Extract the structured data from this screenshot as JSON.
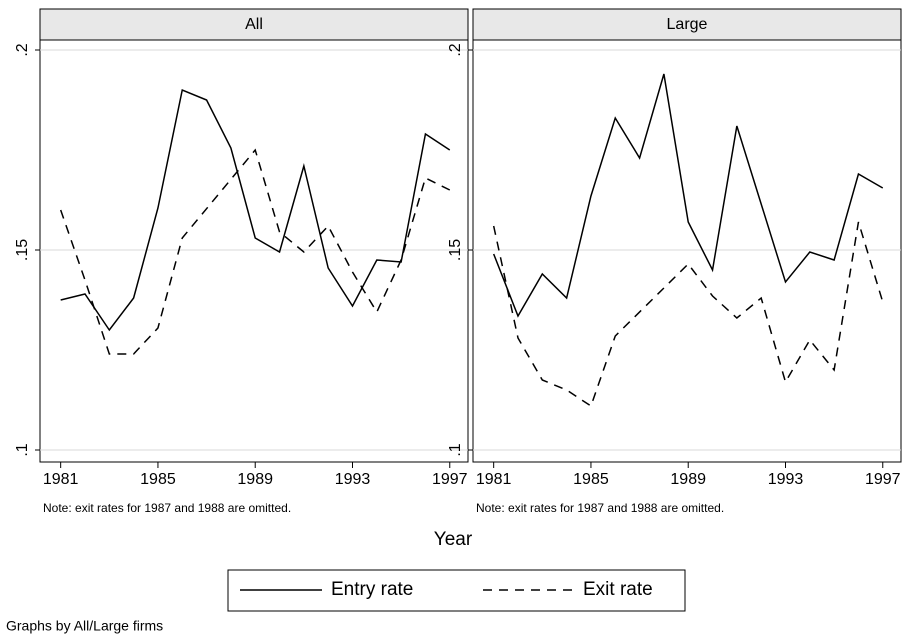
{
  "chart_data": [
    {
      "type": "line",
      "title": "All",
      "note": "Note: exit rates for 1987 and 1988 are omitted.",
      "xlim": [
        1980.15,
        1997.75
      ],
      "xticks": [
        1981,
        1985,
        1989,
        1993,
        1997
      ],
      "ylim": [
        0.097,
        0.2025
      ],
      "yticks": [
        {
          "value": 0.1,
          "label": ".1"
        },
        {
          "value": 0.15,
          "label": ".15"
        },
        {
          "value": 0.2,
          "label": ".2"
        }
      ],
      "grid": true,
      "series": [
        {
          "name": "Entry rate",
          "color": "#000000",
          "dash": false,
          "x": [
            1981,
            1982,
            1983,
            1984,
            1985,
            1986,
            1987,
            1988,
            1989,
            1990,
            1991,
            1992,
            1993,
            1994,
            1995,
            1996,
            1997
          ],
          "values": [
            0.1375,
            0.139,
            0.13,
            0.138,
            0.1605,
            0.19,
            0.1875,
            0.1755,
            0.153,
            0.1495,
            0.171,
            0.1455,
            0.136,
            0.1475,
            0.147,
            0.179,
            0.175
          ]
        },
        {
          "name": "Exit rate",
          "color": "#000000",
          "dash": true,
          "x": [
            1981,
            1982,
            1983,
            1984,
            1985,
            1986,
            1989,
            1990,
            1991,
            1992,
            1993,
            1994,
            1995,
            1996,
            1997
          ],
          "values": [
            0.16,
            0.1425,
            0.124,
            0.124,
            0.1305,
            0.153,
            0.175,
            0.1545,
            0.1495,
            0.156,
            0.1445,
            0.1345,
            0.1475,
            0.168,
            0.165
          ]
        }
      ]
    },
    {
      "type": "line",
      "title": "Large",
      "note": "Note: exit rates for 1987 and 1988 are omitted.",
      "xlim": [
        1980.15,
        1997.75
      ],
      "xticks": [
        1981,
        1985,
        1989,
        1993,
        1997
      ],
      "ylim": [
        0.097,
        0.2025
      ],
      "yticks": [
        {
          "value": 0.1,
          "label": ".1"
        },
        {
          "value": 0.15,
          "label": ".15"
        },
        {
          "value": 0.2,
          "label": ".2"
        }
      ],
      "grid": true,
      "series": [
        {
          "name": "Entry rate",
          "color": "#000000",
          "dash": false,
          "x": [
            1981,
            1982,
            1983,
            1984,
            1985,
            1986,
            1987,
            1988,
            1989,
            1990,
            1991,
            1992,
            1993,
            1994,
            1995,
            1996,
            1997
          ],
          "values": [
            0.149,
            0.1335,
            0.144,
            0.138,
            0.1635,
            0.183,
            0.173,
            0.194,
            0.157,
            0.145,
            0.181,
            0.1615,
            0.142,
            0.1495,
            0.1475,
            0.169,
            0.1655
          ]
        },
        {
          "name": "Exit rate",
          "color": "#000000",
          "dash": true,
          "x": [
            1981,
            1982,
            1983,
            1984,
            1985,
            1986,
            1989,
            1990,
            1991,
            1992,
            1993,
            1994,
            1995,
            1996,
            1997
          ],
          "values": [
            0.156,
            0.128,
            0.1175,
            0.115,
            0.111,
            0.1285,
            0.1465,
            0.1385,
            0.133,
            0.138,
            0.117,
            0.1275,
            0.12,
            0.157,
            0.137
          ]
        }
      ]
    }
  ],
  "xlabel": "Year",
  "caption": "Graphs by All/Large firms"
}
